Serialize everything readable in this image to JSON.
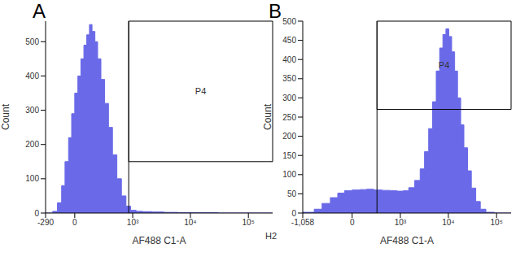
{
  "chart_data": [
    {
      "type": "histogram",
      "title": "A",
      "x_label": "AF488 C1-A",
      "y_label": "Count",
      "color": "#6a6ae8",
      "bins": [
        -290,
        -200,
        -150,
        -110,
        -80,
        -50,
        -25,
        0,
        25,
        50,
        75,
        100,
        125,
        150,
        180,
        210,
        250,
        300,
        360,
        430,
        520,
        630,
        760,
        920,
        1150,
        1500,
        2200,
        3500,
        6000,
        12000,
        30000,
        262144
      ],
      "values": [
        0,
        5,
        30,
        80,
        150,
        220,
        290,
        350,
        400,
        450,
        490,
        520,
        550,
        530,
        500,
        450,
        390,
        320,
        250,
        170,
        100,
        50,
        20,
        8,
        5,
        4,
        3,
        2,
        1,
        1,
        0
      ],
      "xlim": [
        -290,
        262144
      ],
      "xticks": [
        -290,
        0,
        {
          "value": 1000,
          "label": "10³"
        },
        {
          "value": 10000,
          "label": "10⁴"
        },
        {
          "value": 100000,
          "label": "10⁵"
        }
      ],
      "ylim": [
        0,
        560
      ],
      "yticks": [
        0,
        100,
        200,
        300,
        400,
        500
      ],
      "annotations": [
        {
          "text": "P4",
          "x": [
            850,
            262144
          ],
          "y": [
            150,
            560
          ]
        }
      ]
    },
    {
      "type": "histogram",
      "title": "B",
      "x_label": "AF488 C1-A",
      "y_label": "Count",
      "color": "#6a6ae8",
      "bins": [
        -1058,
        -600,
        -400,
        -250,
        -150,
        -75,
        0,
        75,
        150,
        250,
        400,
        600,
        850,
        1150,
        1500,
        2000,
        2600,
        3200,
        3900,
        4700,
        5600,
        6600,
        7700,
        8900,
        10200,
        11700,
        13500,
        15500,
        18000,
        21000,
        25000,
        30000,
        37000,
        46000,
        60000,
        90000,
        200000
      ],
      "values": [
        2,
        10,
        25,
        40,
        52,
        58,
        60,
        61,
        62,
        60,
        59,
        58,
        57,
        58,
        66,
        85,
        115,
        160,
        220,
        290,
        370,
        430,
        465,
        480,
        460,
        420,
        370,
        300,
        230,
        170,
        110,
        65,
        30,
        10,
        2,
        0
      ],
      "xlim": [
        -1058,
        200000
      ],
      "xticks": [
        {
          "value": -1058,
          "label": "-1,058"
        },
        0,
        {
          "value": 1000,
          "label": "10³"
        },
        {
          "value": 10000,
          "label": "10⁴"
        },
        {
          "value": 100000,
          "label": "10⁵"
        }
      ],
      "ylim": [
        0,
        500
      ],
      "yticks": [
        0,
        50,
        100,
        150,
        200,
        250,
        300,
        350,
        400,
        450,
        500
      ],
      "annotations": [
        {
          "text": "P4",
          "x": [
            300,
            200000
          ],
          "y": [
            270,
            500
          ]
        },
        {
          "text": "H2"
        }
      ]
    }
  ]
}
